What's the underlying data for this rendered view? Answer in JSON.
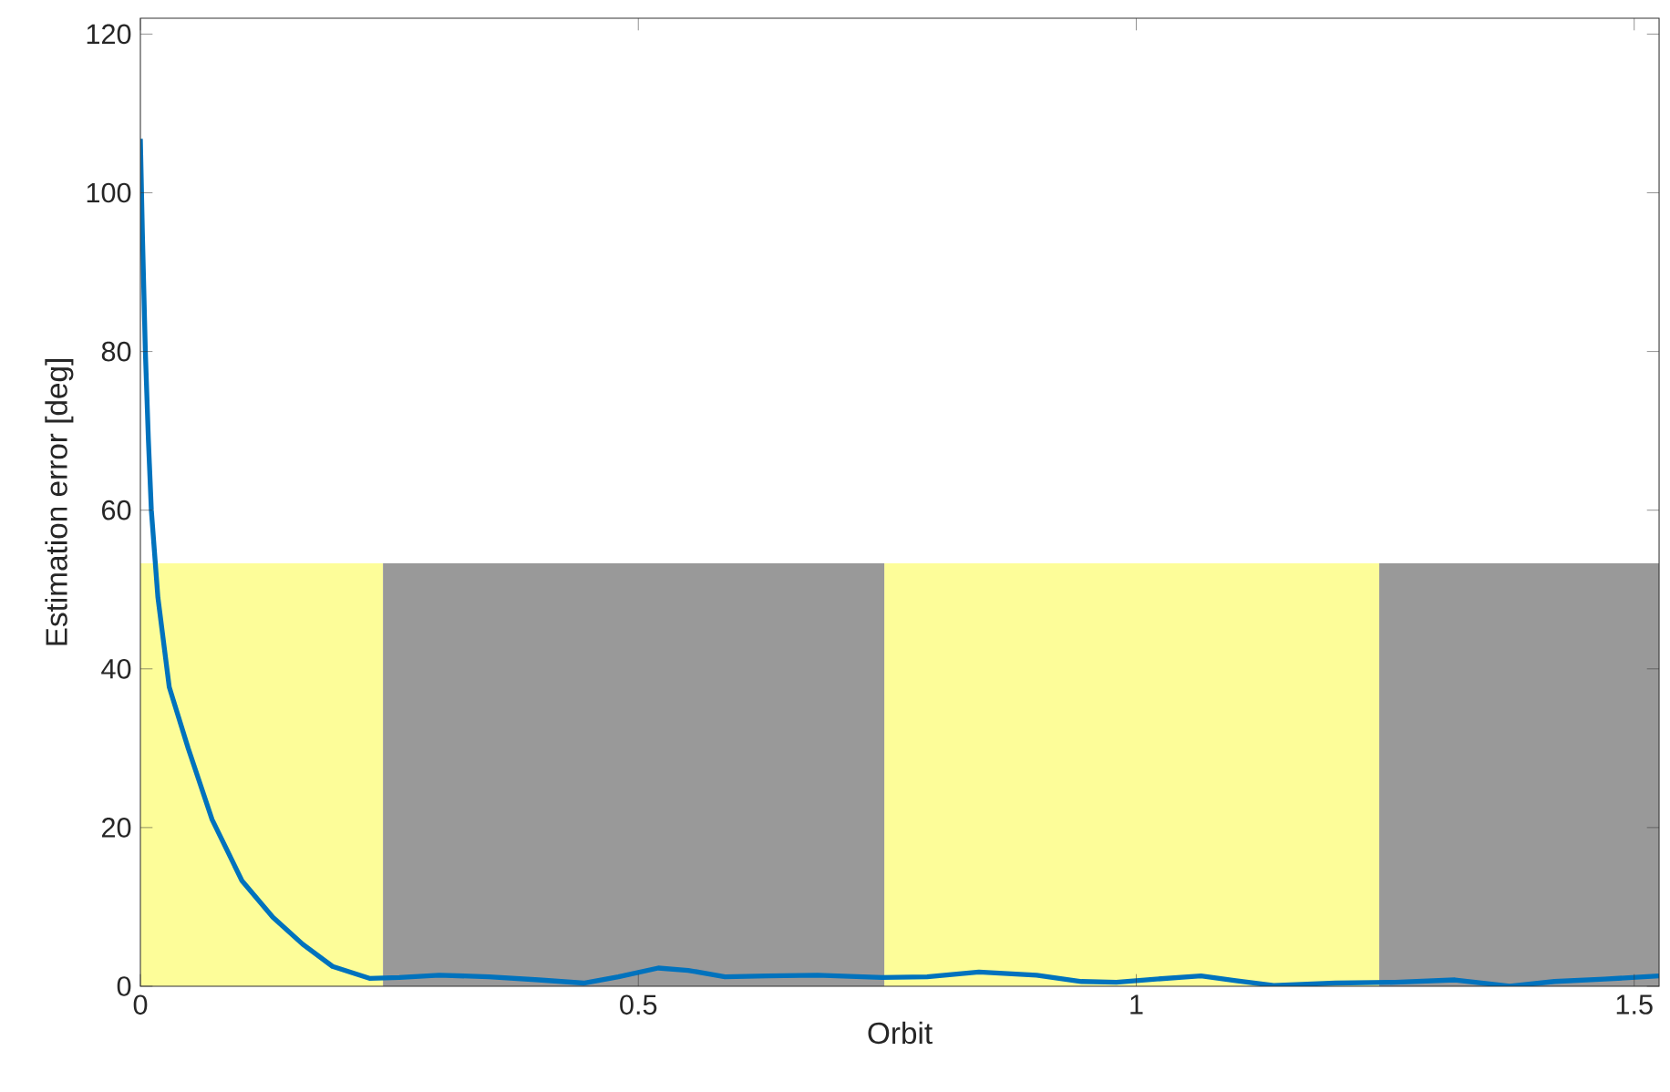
{
  "chart_data": {
    "type": "line",
    "xlabel": "Orbit",
    "ylabel": "Estimation error [deg]",
    "xlim": [
      0,
      1.525
    ],
    "ylim": [
      0,
      122
    ],
    "xticks": [
      0,
      0.5,
      1,
      1.5
    ],
    "yticks": [
      0,
      20,
      40,
      60,
      80,
      100,
      120
    ],
    "grid": false,
    "series": [
      {
        "type": "area",
        "color": "#fdfd99",
        "x": [
          0,
          0.2436,
          0.2436,
          0.747,
          0.747,
          1.244
        ],
        "values": [
          53.3,
          53.3,
          0,
          0,
          53.3,
          53.3
        ]
      },
      {
        "type": "area",
        "color": "#999999",
        "x": [
          0.2436,
          0.747,
          0.747,
          1.244,
          1.244,
          1.525
        ],
        "values": [
          53.3,
          53.3,
          0,
          0,
          53.3,
          53.3
        ]
      },
      {
        "color": "#0072bd",
        "x": [
          0,
          0.002,
          0.005,
          0.008,
          0.011,
          0.0176,
          0.029,
          0.048,
          0.072,
          0.102,
          0.133,
          0.163,
          0.193,
          0.23,
          0.26,
          0.3,
          0.35,
          0.4,
          0.445,
          0.48,
          0.52,
          0.55,
          0.587,
          0.63,
          0.68,
          0.745,
          0.79,
          0.842,
          0.9,
          0.945,
          0.98,
          1.02,
          1.065,
          1.1,
          1.138,
          1.2,
          1.26,
          1.32,
          1.375,
          1.42,
          1.47,
          1.525
        ],
        "values": [
          106.8,
          95,
          80,
          69,
          60,
          49,
          37.7,
          30,
          21,
          13.3,
          8.7,
          5.3,
          2.5,
          1,
          1.1,
          1.4,
          1.2,
          0.8,
          0.4,
          1.2,
          2.3,
          2,
          1.2,
          1.3,
          1.4,
          1.1,
          1.2,
          1.8,
          1.4,
          0.6,
          0.5,
          0.9,
          1.3,
          0.7,
          0.1,
          0.4,
          0.5,
          0.8,
          0.0,
          0.6,
          0.9,
          1.3
        ]
      }
    ]
  }
}
